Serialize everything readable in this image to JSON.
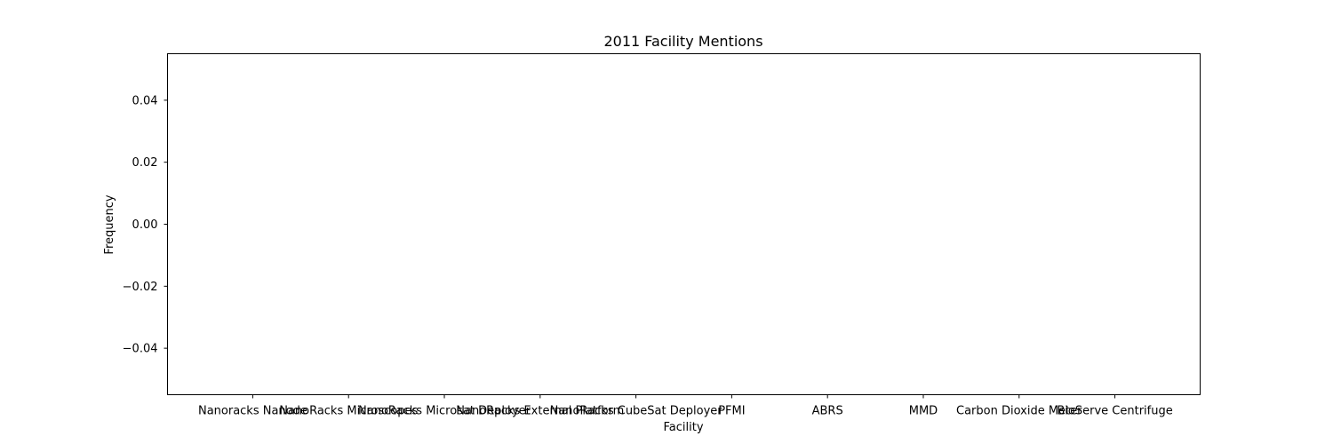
{
  "chart_data": {
    "type": "bar",
    "title": "2011 Facility Mentions",
    "xlabel": "Facility",
    "ylabel": "Frequency",
    "categories": [
      "Nanoracks Nanode",
      "NanoRacks Microscopes",
      "NanoRacks Microsat Deployer",
      "NanoRacks External Platform",
      "NanoRacks CubeSat Deployer",
      "PFMI",
      "ABRS",
      "MMD",
      "Carbon Dioxide Meter",
      "BioServe Centrifuge"
    ],
    "values": [
      0,
      0,
      0,
      0,
      0,
      0,
      0,
      0,
      0,
      0
    ],
    "ylim": [
      -0.055,
      0.055
    ],
    "yticks": [
      -0.04,
      -0.02,
      0.0,
      0.02,
      0.04
    ],
    "ytick_labels": [
      "−0.04",
      "−0.02",
      "0.00",
      "0.02",
      "0.04"
    ],
    "grid": false,
    "legend": "none"
  }
}
